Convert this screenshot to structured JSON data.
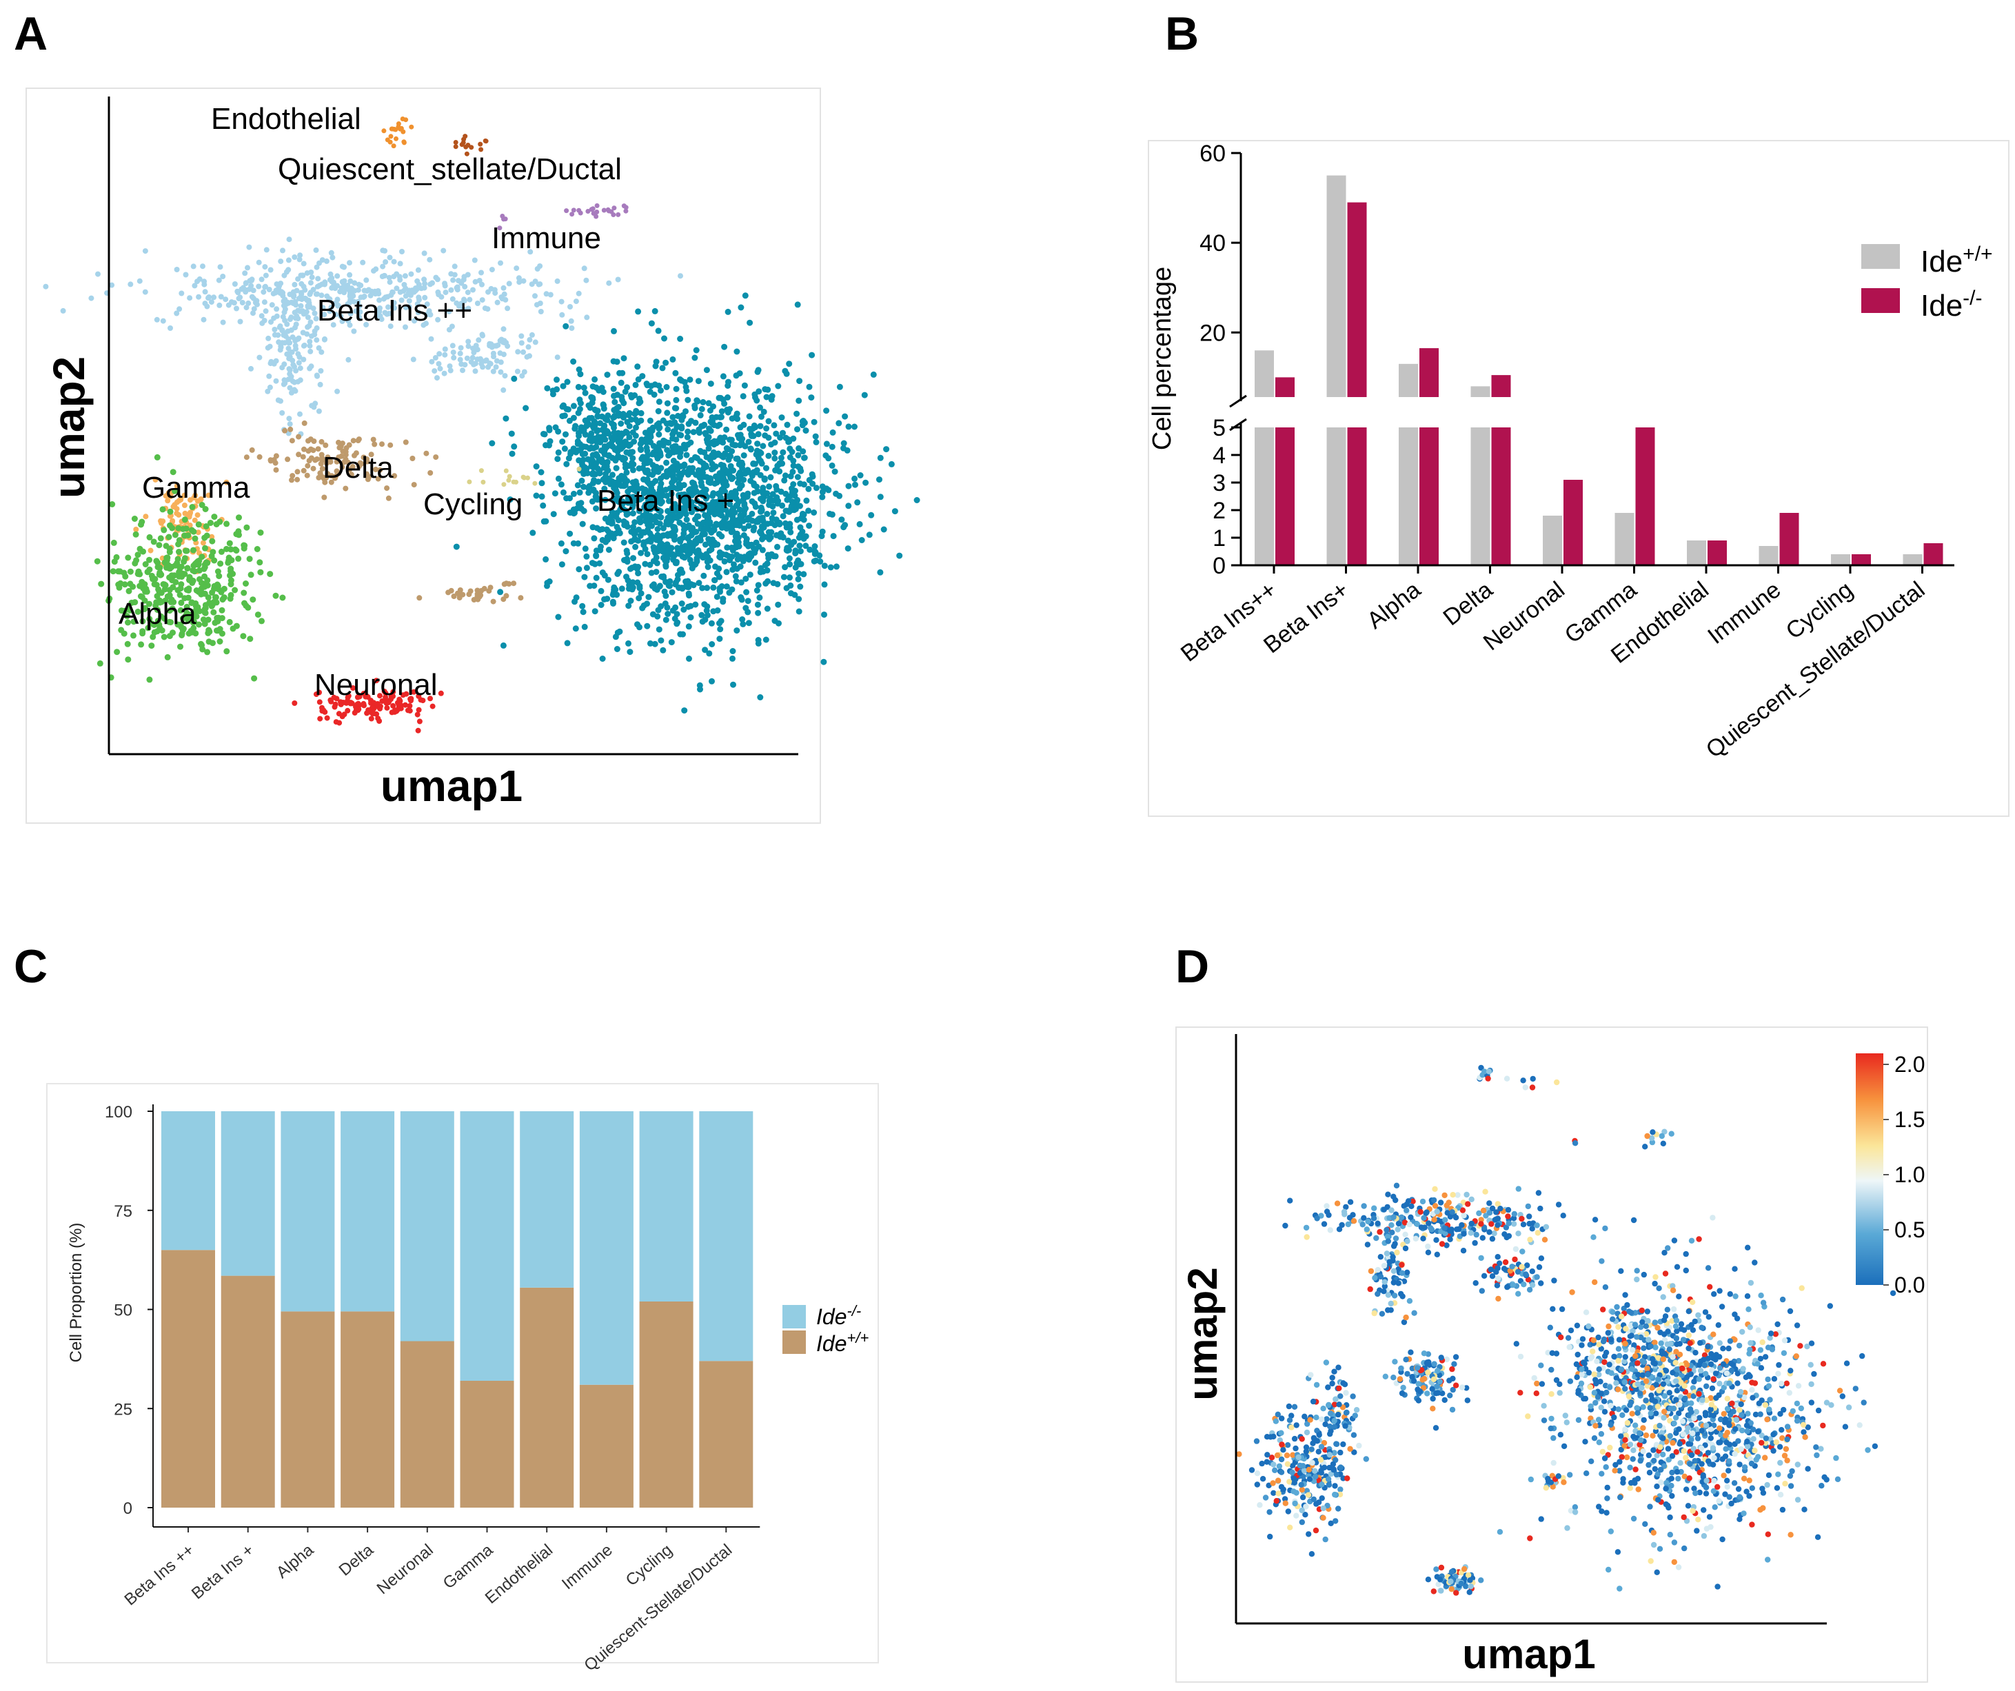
{
  "panel_labels": [
    "A",
    "B",
    "C",
    "D"
  ],
  "chart_data": [
    {
      "panel": "A",
      "type": "scatter",
      "xlabel": "umap1",
      "ylabel": "umap2",
      "cluster_labels": [
        "Endothelial",
        "Quiescent_stellate/Ductal",
        "Immune",
        "Beta Ins ++",
        "Delta",
        "Gamma",
        "Cycling",
        "Beta Ins +",
        "Alpha",
        "Neuronal"
      ],
      "colors": {
        "Beta Ins ++": "#a6d3ea",
        "Beta Ins +": "#0a8fab",
        "Alpha": "#55be4a",
        "Gamma": "#f7b05a",
        "Delta": "#be9a6c",
        "Neuronal": "#ea2727",
        "Endothelial": "#f0912e",
        "Quiescent_stellate/Ductal": "#b4531c",
        "Immune": "#a77bbd",
        "Cycling": "#dad28a"
      }
    },
    {
      "panel": "B",
      "type": "bar",
      "ylabel": "Cell percentage",
      "categories": [
        "Beta Ins++",
        "Beta Ins+",
        "Alpha",
        "Delta",
        "Neuronal",
        "Gamma",
        "Endothelial",
        "Immune",
        "Cycling",
        "Quiescent_Stellate/Ductal"
      ],
      "series": [
        {
          "name": "Ide+/+",
          "base": "Ide",
          "sup": "+/+",
          "color": "#c3c3c3",
          "values": [
            16,
            55,
            13,
            8,
            1.8,
            1.9,
            0.9,
            0.7,
            0.4,
            0.4
          ]
        },
        {
          "name": "Ide-/-",
          "base": "Ide",
          "sup": "-/-",
          "color": "#b0124f",
          "values": [
            10,
            49,
            16.5,
            10.5,
            3.1,
            5,
            0.9,
            1.9,
            0.4,
            0.8
          ]
        }
      ],
      "axis_break": {
        "lower": [
          0,
          5
        ],
        "upper": [
          5.6,
          60
        ]
      },
      "yticks_lower": [
        "0",
        "1",
        "2",
        "3",
        "4",
        "5"
      ],
      "yticks_upper": [
        "20",
        "40",
        "60"
      ]
    },
    {
      "panel": "C",
      "type": "bar",
      "stacked": true,
      "ylabel": "Cell Proportion (%)",
      "ylim": [
        0,
        100
      ],
      "yticks": [
        "0",
        "25",
        "50",
        "75",
        "100"
      ],
      "categories": [
        "Beta Ins ++",
        "Beta Ins +",
        "Alpha",
        "Delta",
        "Neuronal",
        "Gamma",
        "Endothelial",
        "Immune",
        "Cycling",
        "Quiescent-Stellate/Ductal"
      ],
      "series": [
        {
          "name": "Ide+/+",
          "base": "Ide",
          "sup": "+/+",
          "color": "#c19a6e",
          "values": [
            65,
            58.5,
            49.5,
            49.5,
            42,
            32,
            55.5,
            31,
            52,
            37
          ]
        },
        {
          "name": "Ide-/-",
          "base": "Ide",
          "sup": "-/-",
          "color": "#93cde3",
          "values": [
            35,
            41.5,
            50.5,
            50.5,
            58,
            68,
            44.5,
            69,
            48,
            63
          ]
        }
      ]
    },
    {
      "panel": "D",
      "type": "scatter",
      "xlabel": "umap1",
      "ylabel": "umap2",
      "colorbar": {
        "ticks": [
          "2.0",
          "1.5",
          "1.0",
          "0.5",
          "0.0"
        ],
        "range": [
          0,
          2.1
        ]
      }
    }
  ]
}
